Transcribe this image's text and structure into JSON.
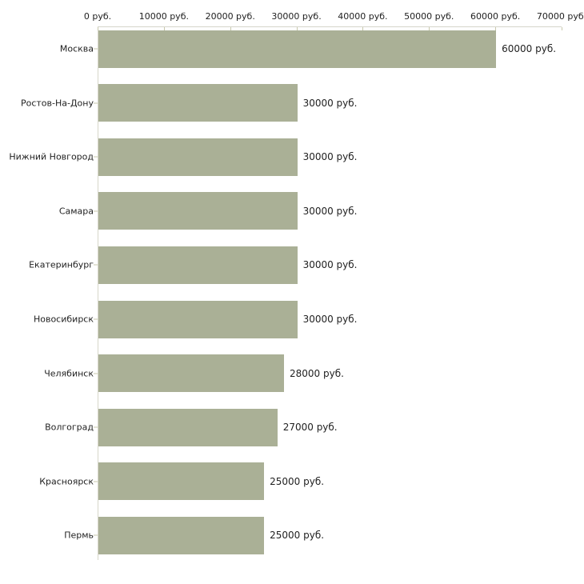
{
  "chart_data": {
    "type": "bar",
    "orientation": "horizontal",
    "title": "",
    "xlabel": "",
    "ylabel": "",
    "categories": [
      "Москва",
      "Ростов-На-Дону",
      "Нижний Новгород",
      "Самара",
      "Екатеринбург",
      "Новосибирск",
      "Челябинск",
      "Волгоград",
      "Красноярск",
      "Пермь"
    ],
    "values": [
      60000,
      30000,
      30000,
      30000,
      30000,
      30000,
      28000,
      27000,
      25000,
      25000
    ],
    "value_labels": [
      "60000 руб.",
      "30000 руб.",
      "30000 руб.",
      "30000 руб.",
      "30000 руб.",
      "30000 руб.",
      "28000 руб.",
      "27000 руб.",
      "25000 руб.",
      "25000 руб."
    ],
    "x_ticks": [
      "0 руб.",
      "10000 руб.",
      "20000 руб.",
      "30000 руб.",
      "40000 руб.",
      "50000 руб.",
      "60000 руб.",
      "70000 руб."
    ],
    "x_tick_values": [
      0,
      10000,
      20000,
      30000,
      40000,
      50000,
      60000,
      70000
    ],
    "xlim": [
      0,
      70000
    ],
    "grid": false,
    "legend": false,
    "colors": {
      "bar": "#aab096",
      "axis_line": "#d6d6ca",
      "tick_mark": "#c9c9ae",
      "text": "#1f1f1f",
      "background": "#ffffff"
    }
  }
}
